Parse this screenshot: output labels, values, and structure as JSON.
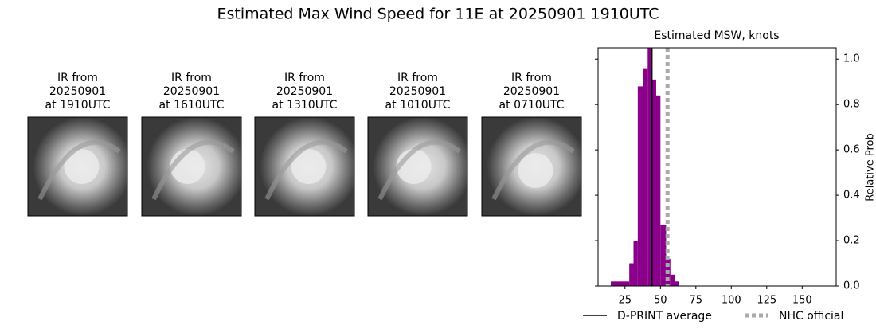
{
  "title": "Estimated Max Wind Speed for 11E at 20250901 1910UTC",
  "panels": [
    {
      "lines": [
        "IR from",
        "20250901",
        "at 1910UTC"
      ]
    },
    {
      "lines": [
        "IR from",
        "20250901",
        "at 1610UTC"
      ]
    },
    {
      "lines": [
        "IR from",
        "20250901",
        "at 1310UTC"
      ]
    },
    {
      "lines": [
        "IR from",
        "20250901",
        "at 1010UTC"
      ]
    },
    {
      "lines": [
        "IR from",
        "20250901",
        "at 0710UTC"
      ]
    }
  ],
  "chart_data": {
    "type": "histogram",
    "title": "Estimated MSW, knots",
    "ylabel": "Relative Prob",
    "color": "#8b008b",
    "bins": [
      15,
      28,
      31,
      34,
      38,
      41,
      44,
      47,
      50,
      54,
      57,
      60,
      63
    ],
    "values": [
      0.02,
      0.1,
      0.2,
      0.88,
      0.96,
      1.05,
      0.91,
      0.84,
      0.27,
      0.12,
      0.05,
      0.02
    ],
    "xlim": [
      6,
      174
    ],
    "ylim": [
      0,
      1.05
    ],
    "xticks": [
      25,
      50,
      75,
      100,
      125,
      150
    ],
    "yticks": [
      {
        "value": 0,
        "label": "0.0"
      },
      {
        "value": 0.2,
        "label": "0.2"
      },
      {
        "value": 0.4,
        "label": "0.4"
      },
      {
        "value": 0.6,
        "label": "0.6"
      },
      {
        "value": 0.8,
        "label": "0.8"
      },
      {
        "value": 1,
        "label": "1.0"
      }
    ],
    "vlines": [
      {
        "name": "D-PRINT average",
        "value": 44,
        "color": "#000000",
        "style": "solid"
      },
      {
        "name": "NHC official",
        "value": 55,
        "color": "#aaaaaa",
        "style": "dotted"
      }
    ]
  }
}
